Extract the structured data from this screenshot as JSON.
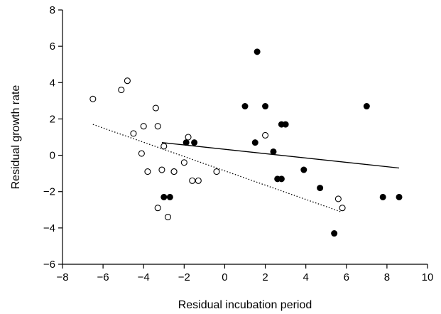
{
  "chart_data": {
    "type": "scatter",
    "xlabel": "Residual incubation period",
    "ylabel": "Residual growth rate",
    "xlim": [
      -8,
      10
    ],
    "ylim": [
      -6,
      8
    ],
    "xticks": [
      -8,
      -6,
      -4,
      -2,
      0,
      2,
      4,
      6,
      8,
      10
    ],
    "yticks": [
      -6,
      -4,
      -2,
      0,
      2,
      4,
      6,
      8
    ],
    "xtick_labels": [
      "−8",
      "−6",
      "−4",
      "−2",
      "0",
      "2",
      "4",
      "6",
      "8",
      "10"
    ],
    "ytick_labels": [
      "−6",
      "−4",
      "−2",
      "0",
      "2",
      "4",
      "6",
      "8"
    ],
    "series": [
      {
        "marker": "open",
        "x": [
          -6.5,
          -5.1,
          -4.8,
          -4.5,
          -4.1,
          -4.0,
          -3.8,
          -3.4,
          -3.3,
          -3.3,
          -3.1,
          -3.0,
          -2.8,
          -2.5,
          -2.5,
          -2.0,
          -1.8,
          -1.6,
          -1.3,
          -0.4,
          2.0,
          5.6,
          5.8
        ],
        "y": [
          3.1,
          3.6,
          4.1,
          1.2,
          0.1,
          1.6,
          -0.9,
          2.6,
          1.6,
          -2.9,
          -0.8,
          0.5,
          -3.4,
          -0.9,
          -0.9,
          -0.4,
          1.0,
          -1.4,
          -1.4,
          -0.9,
          1.1,
          -2.4,
          -2.9
        ]
      },
      {
        "marker": "filled",
        "x": [
          -3.0,
          -2.7,
          -1.9,
          -1.5,
          1.0,
          1.5,
          1.6,
          2.0,
          2.4,
          2.6,
          2.8,
          2.8,
          3.0,
          3.9,
          4.7,
          5.4,
          7.0,
          7.8,
          8.6
        ],
        "y": [
          -2.3,
          -2.3,
          0.7,
          0.7,
          2.7,
          0.7,
          5.7,
          2.7,
          0.2,
          -1.3,
          -1.3,
          1.7,
          1.7,
          -0.8,
          -1.8,
          -4.3,
          2.7,
          -2.3,
          -2.3
        ]
      }
    ],
    "fit_lines": [
      {
        "style": "solid",
        "x": [
          -3.1,
          8.6
        ],
        "y": [
          0.7,
          -0.7
        ]
      },
      {
        "style": "dotted",
        "x": [
          -6.5,
          5.7
        ],
        "y": [
          1.7,
          -3.1
        ]
      }
    ]
  }
}
